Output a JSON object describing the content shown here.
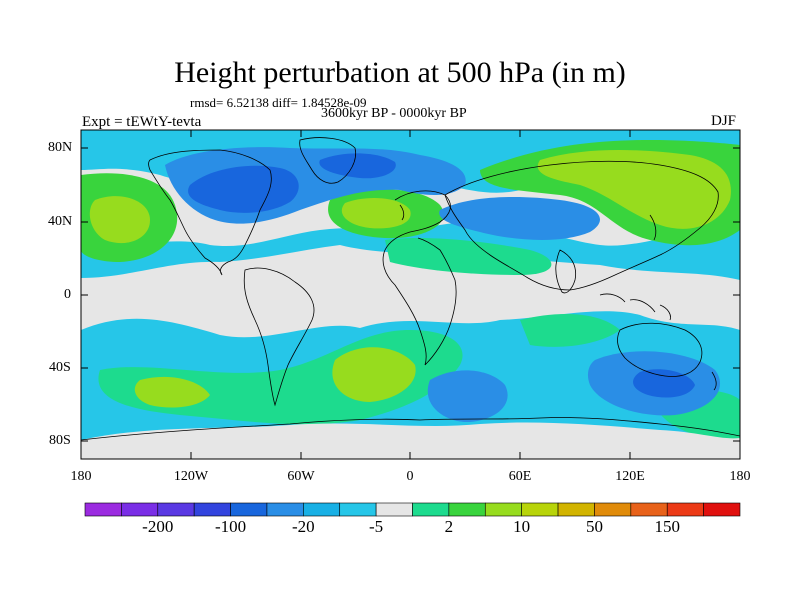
{
  "figure": {
    "title": "Height perturbation at 500 hPa (in m)",
    "stats": "rmsd= 6.52138  diff= 1.84528e-09",
    "period": "3600kyr BP - 0000kyr BP",
    "experiment": "Expt = tEWtY-tevta",
    "season": "DJF"
  },
  "axes": {
    "lat_labels": [
      "80N",
      "40N",
      "0",
      "40S",
      "80S"
    ],
    "lon_labels": [
      "180",
      "120W",
      "60W",
      "0",
      "60E",
      "120E",
      "180"
    ]
  },
  "colorbar": {
    "labels": [
      "-200",
      "-100",
      "-20",
      "-5",
      "2",
      "10",
      "50",
      "150"
    ],
    "colors": [
      "#9b2be0",
      "#7a2ee6",
      "#5a39e3",
      "#3244de",
      "#1866dd",
      "#2a8ee6",
      "#18b0e5",
      "#26c6e8",
      "#e6e6e6",
      "#1ddb8e",
      "#39d43d",
      "#97dc1e",
      "#b8d40a",
      "#d2b400",
      "#e08b0a",
      "#e8621a",
      "#ec3a16",
      "#e0100e"
    ]
  },
  "chart_data": {
    "type": "heatmap",
    "title": "Height perturbation at 500 hPa (in m)",
    "variable": "500 hPa geopotential height perturbation",
    "units": "m",
    "lon_range": [
      -180,
      180
    ],
    "lat_range": [
      -90,
      90
    ],
    "contour_levels": [
      -200,
      -100,
      -20,
      -5,
      2,
      10,
      50,
      150
    ],
    "features": [
      {
        "region": "Arctic / Greenland / northern Canada",
        "sign": "negative",
        "approx": "-20 to -50"
      },
      {
        "region": "North Pacific (~45N, 165W)",
        "sign": "positive",
        "approx": "10 to 50"
      },
      {
        "region": "North Atlantic (~45N, 25W)",
        "sign": "positive",
        "approx": "10 to 50"
      },
      {
        "region": "Siberia / East Asia",
        "sign": "positive",
        "approx": "10 to 50"
      },
      {
        "region": "Southern Ocean (~50S, 130E)",
        "sign": "negative",
        "approx": "-20 to -50"
      },
      {
        "region": "South Atlantic (~40S, 20W)",
        "sign": "positive",
        "approx": "10 to 50"
      },
      {
        "region": "South Pacific (~55S, 150W)",
        "sign": "positive",
        "approx": "5 to 20"
      }
    ]
  }
}
